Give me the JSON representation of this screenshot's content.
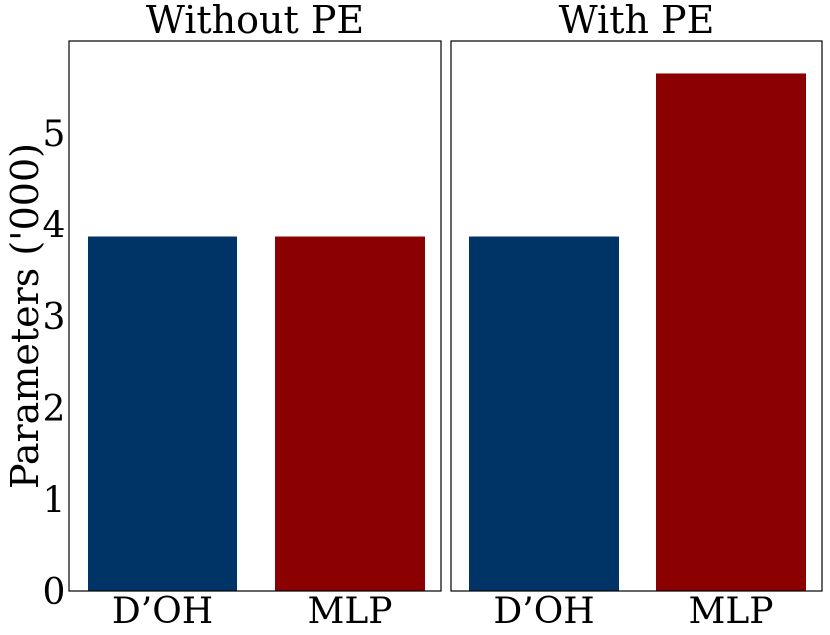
{
  "chart_data": {
    "type": "bar",
    "ylabel": "Parameters ('000)",
    "ylim": [
      0,
      6
    ],
    "yticks": [
      0,
      1,
      2,
      3,
      4,
      5
    ],
    "grid": false,
    "colors": {
      "D'OH": "#003366",
      "MLP": "#8b0000"
    },
    "panels": [
      {
        "title": "Without PE",
        "categories": [
          "D’OH",
          "MLP"
        ],
        "values": [
          3.87,
          3.87
        ]
      },
      {
        "title": "With PE",
        "categories": [
          "D’OH",
          "MLP"
        ],
        "values": [
          3.87,
          5.65
        ]
      }
    ]
  }
}
